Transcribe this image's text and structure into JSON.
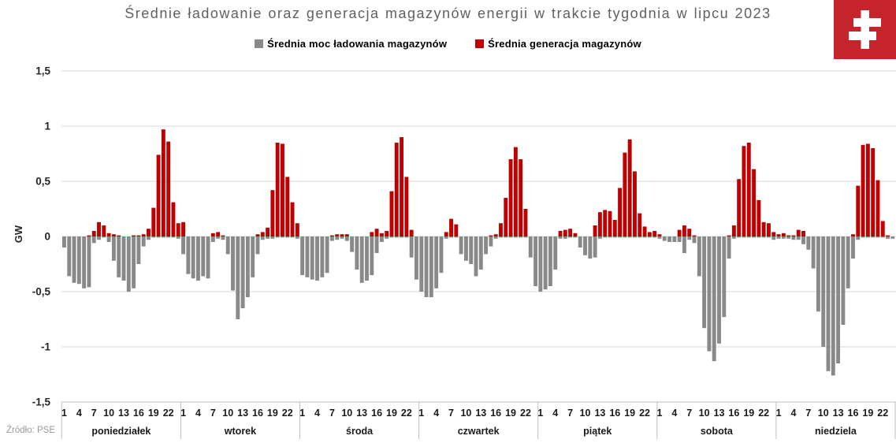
{
  "title": "Średnie ładowanie oraz generacja magazynów energii w trakcie tygodnia w lipcu 2023",
  "source": "Źródło: PSE",
  "logo": {
    "name": "pse-logo",
    "bg": "#C5242C",
    "mark": "#ffffff"
  },
  "legend": [
    {
      "label": "Średnia moc ładowania magazynów",
      "color": "#898989"
    },
    {
      "label": "Średnia generacja magazynów",
      "color": "#C00000"
    }
  ],
  "chart_data": {
    "type": "bar",
    "ylabel": "GW",
    "ylim": [
      -1.5,
      1.5
    ],
    "ytick_step": 0.5,
    "grid": true,
    "days": [
      "poniedziałek",
      "wtorek",
      "środa",
      "czwartek",
      "piątek",
      "sobota",
      "niedziela"
    ],
    "hours_per_day": 24,
    "hour_ticks": [
      1,
      4,
      7,
      10,
      13,
      16,
      19,
      22
    ],
    "series": [
      {
        "name": "Średnia moc ładowania magazynów",
        "color": "#898989",
        "values_by_day": [
          [
            -0.1,
            -0.36,
            -0.42,
            -0.43,
            -0.47,
            -0.46,
            -0.06,
            -0.03,
            -0.01,
            -0.05,
            -0.22,
            -0.37,
            -0.4,
            -0.5,
            -0.47,
            -0.25,
            -0.09,
            -0.03,
            -0.01,
            -0.01,
            -0.01,
            -0.01,
            -0.01,
            -0.02
          ],
          [
            -0.16,
            -0.34,
            -0.38,
            -0.4,
            -0.36,
            -0.38,
            -0.05,
            -0.02,
            -0.03,
            -0.16,
            -0.49,
            -0.75,
            -0.65,
            -0.55,
            -0.37,
            -0.16,
            -0.03,
            -0.02,
            -0.02,
            -0.01,
            -0.01,
            -0.01,
            -0.01,
            -0.02
          ],
          [
            -0.35,
            -0.37,
            -0.39,
            -0.4,
            -0.37,
            -0.33,
            -0.04,
            -0.03,
            -0.02,
            -0.04,
            -0.14,
            -0.3,
            -0.42,
            -0.4,
            -0.35,
            -0.15,
            -0.05,
            -0.02,
            -0.01,
            -0.01,
            -0.01,
            -0.01,
            -0.19,
            -0.39
          ],
          [
            -0.5,
            -0.55,
            -0.55,
            -0.47,
            -0.33,
            -0.02,
            -0.01,
            -0.01,
            -0.16,
            -0.22,
            -0.25,
            -0.36,
            -0.3,
            -0.16,
            -0.09,
            -0.02,
            -0.01,
            -0.01,
            -0.01,
            -0.01,
            -0.01,
            -0.01,
            -0.19,
            -0.45
          ],
          [
            -0.5,
            -0.48,
            -0.45,
            -0.3,
            -0.02,
            -0.02,
            -0.01,
            -0.01,
            -0.1,
            -0.17,
            -0.2,
            -0.19,
            -0.02,
            -0.01,
            -0.01,
            -0.01,
            -0.01,
            -0.01,
            -0.01,
            -0.01,
            -0.01,
            -0.01,
            -0.01,
            -0.01
          ],
          [
            -0.02,
            -0.04,
            -0.05,
            -0.05,
            -0.05,
            -0.15,
            -0.03,
            -0.06,
            -0.36,
            -0.83,
            -1.04,
            -1.13,
            -0.97,
            -0.73,
            -0.2,
            -0.02,
            -0.01,
            -0.01,
            -0.01,
            -0.01,
            -0.01,
            -0.01,
            -0.01,
            -0.03
          ],
          [
            -0.02,
            -0.02,
            -0.02,
            -0.03,
            -0.03,
            -0.07,
            -0.12,
            -0.29,
            -0.68,
            -1.0,
            -1.22,
            -1.26,
            -1.15,
            -0.8,
            -0.47,
            -0.2,
            -0.03,
            -0.01,
            -0.01,
            -0.01,
            -0.01,
            -0.01,
            -0.02,
            -0.02
          ]
        ]
      },
      {
        "name": "Średnia generacja magazynów",
        "color": "#C00000",
        "values_by_day": [
          [
            0,
            0,
            0,
            0,
            0,
            0.01,
            0.05,
            0.13,
            0.1,
            0.03,
            0.02,
            0.01,
            0,
            0,
            0.01,
            0.01,
            0.02,
            0.07,
            0.26,
            0.74,
            0.97,
            0.86,
            0.31,
            0.12
          ],
          [
            0.13,
            0,
            0,
            0,
            0,
            0,
            0.03,
            0.04,
            0.01,
            0,
            0,
            0,
            0,
            0,
            0,
            0.02,
            0.04,
            0.08,
            0.42,
            0.85,
            0.84,
            0.54,
            0.31,
            0.12
          ],
          [
            0,
            0,
            0,
            0,
            0,
            0,
            0.01,
            0.02,
            0.02,
            0.02,
            0,
            0,
            0,
            0,
            0.04,
            0.07,
            0.03,
            0.05,
            0.41,
            0.85,
            0.9,
            0.54,
            0.06,
            0
          ],
          [
            0,
            0,
            0,
            0,
            0,
            0.04,
            0.16,
            0.11,
            0,
            0,
            0,
            0,
            0,
            0,
            0.01,
            0.02,
            0.12,
            0.35,
            0.7,
            0.81,
            0.7,
            0.25,
            0,
            0
          ],
          [
            0,
            0,
            0,
            0,
            0.05,
            0.06,
            0.07,
            0.03,
            0,
            0,
            0,
            0.1,
            0.22,
            0.24,
            0.23,
            0.15,
            0.44,
            0.76,
            0.88,
            0.59,
            0.21,
            0.09,
            0.04,
            0.05
          ],
          [
            0.02,
            0,
            0,
            0,
            0.06,
            0.1,
            0.07,
            0.01,
            0,
            0,
            0,
            0,
            0,
            0,
            0.01,
            0.1,
            0.52,
            0.82,
            0.85,
            0.61,
            0.33,
            0.13,
            0.12,
            0.04
          ],
          [
            0.02,
            0.03,
            0.01,
            0.01,
            0.06,
            0.05,
            0,
            0,
            0,
            0,
            0,
            0,
            0,
            0,
            0,
            0.02,
            0.46,
            0.83,
            0.84,
            0.8,
            0.51,
            0.14,
            0.01,
            0
          ]
        ]
      }
    ]
  }
}
